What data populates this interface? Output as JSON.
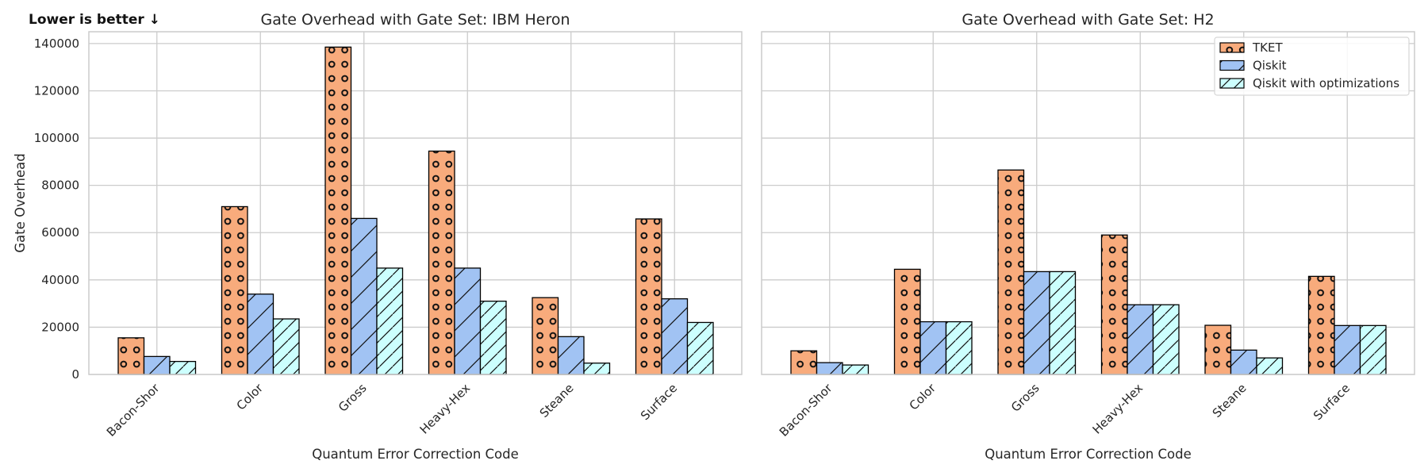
{
  "annotation": "Lower is better ↓",
  "chart_data": [
    {
      "type": "bar",
      "title": "Gate Overhead with Gate Set: IBM Heron",
      "xlabel": "Quantum Error Correction Code",
      "ylabel": "Gate Overhead",
      "ylim": [
        0,
        145000
      ],
      "yticks": [
        "0",
        "20000",
        "40000",
        "60000",
        "80000",
        "100000",
        "120000",
        "140000"
      ],
      "ytick_values": [
        0,
        20000,
        40000,
        60000,
        80000,
        100000,
        120000,
        140000
      ],
      "grid": true,
      "categories": [
        "Bacon-Shor",
        "Color",
        "Gross",
        "Heavy-Hex",
        "Steane",
        "Surface"
      ],
      "series": [
        {
          "name": "TKET",
          "values": [
            15500,
            71000,
            138500,
            94500,
            32500,
            65800
          ],
          "color": "#f8ab7c",
          "hatch": "circles"
        },
        {
          "name": "Qiskit",
          "values": [
            7600,
            34000,
            66000,
            45000,
            16000,
            32000
          ],
          "color": "#a1c3f3",
          "hatch": "diagonal"
        },
        {
          "name": "Qiskit with optimizations",
          "values": [
            5500,
            23500,
            45000,
            31000,
            4800,
            22000
          ],
          "color": "#ccfffe",
          "hatch": "diagonal-dense"
        }
      ]
    },
    {
      "type": "bar",
      "title": "Gate Overhead with Gate Set: H2",
      "xlabel": "Quantum Error Correction Code",
      "ylabel": "",
      "ylim": [
        0,
        145000
      ],
      "yticks": [],
      "ytick_values": [
        0,
        20000,
        40000,
        60000,
        80000,
        100000,
        120000,
        140000
      ],
      "grid": true,
      "legend_position": "top-right",
      "legend": [
        "TKET",
        "Qiskit",
        "Qiskit with optimizations"
      ],
      "categories": [
        "Bacon-Shor",
        "Color",
        "Gross",
        "Heavy-Hex",
        "Steane",
        "Surface"
      ],
      "series": [
        {
          "name": "TKET",
          "values": [
            10000,
            44500,
            86500,
            59000,
            20800,
            41500
          ],
          "color": "#f8ab7c",
          "hatch": "circles"
        },
        {
          "name": "Qiskit",
          "values": [
            5000,
            22300,
            43500,
            29500,
            10300,
            20700
          ],
          "color": "#a1c3f3",
          "hatch": "diagonal"
        },
        {
          "name": "Qiskit with optimizations",
          "values": [
            4000,
            22300,
            43500,
            29500,
            7000,
            20700
          ],
          "color": "#ccfffe",
          "hatch": "diagonal-dense"
        }
      ]
    }
  ]
}
